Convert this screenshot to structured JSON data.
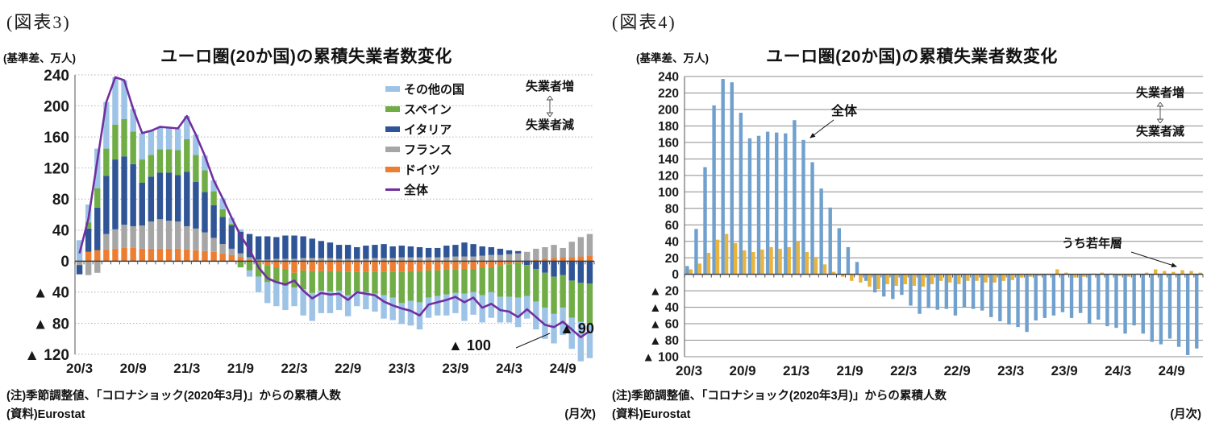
{
  "figures": [
    {
      "caption": "(図表3)",
      "unit_label": "(基準差、万人)",
      "title": "ユーロ圏(20か国)の累積失業者数変化",
      "note1": "(注)季節調整値、「コロナショック(2020年3月)」からの累積人数",
      "note2": "(資料)Eurostat",
      "freq_label": "(月次)",
      "annotations": {
        "increase": "失業者増",
        "decrease": "失業者減",
        "min_callout": "▲ 100",
        "end_value": "▲ 90"
      },
      "legend": {
        "others": "その他の国",
        "spain": "スペイン",
        "italy": "イタリア",
        "france": "フランス",
        "germany": "ドイツ",
        "total": "全体"
      },
      "chart_data": {
        "type": "bar",
        "subtype": "stacked-bars-with-total-line",
        "title": "ユーロ圏(20か国)の累積失業者数変化",
        "ylabel": "(基準差、万人)",
        "xlabel": "(月次)",
        "ylim": [
          -120,
          240
        ],
        "ytick_step": 40,
        "x_tick_every": 6,
        "grid": "dotted",
        "legend_position": "upper-right-inside",
        "categories": [
          "20/3",
          "20/4",
          "20/5",
          "20/6",
          "20/7",
          "20/8",
          "20/9",
          "20/10",
          "20/11",
          "20/12",
          "21/1",
          "21/2",
          "21/3",
          "21/4",
          "21/5",
          "21/6",
          "21/7",
          "21/8",
          "21/9",
          "21/10",
          "21/11",
          "21/12",
          "22/1",
          "22/2",
          "22/3",
          "22/4",
          "22/5",
          "22/6",
          "22/7",
          "22/8",
          "22/9",
          "22/10",
          "22/11",
          "22/12",
          "23/1",
          "23/2",
          "23/3",
          "23/4",
          "23/5",
          "23/6",
          "23/7",
          "23/8",
          "23/9",
          "23/10",
          "23/11",
          "23/12",
          "24/1",
          "24/2",
          "24/3",
          "24/4",
          "24/5",
          "24/6",
          "24/7",
          "24/8",
          "24/9",
          "24/10",
          "24/11",
          "24/12"
        ],
        "series": [
          {
            "key": "germany",
            "name": "ドイツ",
            "color": "#ED7D31",
            "values": [
              0,
              12,
              14,
              15,
              16,
              17,
              17,
              16,
              16,
              16,
              16,
              16,
              15,
              14,
              13,
              12,
              10,
              8,
              5,
              2,
              -2,
              -5,
              -8,
              -10,
              -15,
              -12,
              -13,
              -13,
              -13,
              -13,
              -14,
              -14,
              -14,
              -14,
              -14,
              -14,
              -14,
              -13,
              -13,
              -12,
              -12,
              -11,
              -11,
              -10,
              -10,
              -9,
              -8,
              -6,
              -4,
              -2,
              0,
              2,
              3,
              4,
              5,
              5,
              6,
              7
            ]
          },
          {
            "key": "france",
            "name": "フランス",
            "color": "#A6A6A6",
            "values": [
              -5,
              -18,
              -15,
              20,
              25,
              30,
              28,
              30,
              35,
              38,
              36,
              35,
              30,
              28,
              24,
              18,
              12,
              8,
              5,
              3,
              2,
              2,
              3,
              3,
              3,
              4,
              4,
              4,
              4,
              3,
              3,
              3,
              3,
              4,
              4,
              4,
              5,
              5,
              5,
              5,
              5,
              5,
              6,
              6,
              6,
              7,
              8,
              8,
              9,
              10,
              12,
              14,
              15,
              17,
              12,
              20,
              25,
              28
            ]
          },
          {
            "key": "italy",
            "name": "イタリア",
            "color": "#2F5597",
            "values": [
              -12,
              30,
              55,
              75,
              90,
              88,
              80,
              55,
              58,
              60,
              62,
              60,
              70,
              60,
              52,
              42,
              35,
              30,
              28,
              30,
              30,
              30,
              28,
              30,
              30,
              28,
              25,
              22,
              20,
              18,
              18,
              15,
              17,
              17,
              18,
              15,
              15,
              14,
              13,
              12,
              12,
              15,
              15,
              18,
              16,
              12,
              10,
              8,
              5,
              3,
              -5,
              -10,
              -15,
              -20,
              -18,
              -25,
              -28,
              -29
            ]
          },
          {
            "key": "spain",
            "name": "スペイン",
            "color": "#70AD47",
            "values": [
              0,
              8,
              25,
              35,
              45,
              48,
              42,
              30,
              28,
              30,
              30,
              32,
              42,
              35,
              28,
              18,
              10,
              2,
              -8,
              -12,
              -18,
              -22,
              -20,
              -22,
              -19,
              -24,
              -28,
              -25,
              -26,
              -25,
              -30,
              -25,
              -26,
              -28,
              -30,
              -33,
              -40,
              -38,
              -40,
              -35,
              -33,
              -32,
              -30,
              -32,
              -30,
              -35,
              -32,
              -40,
              -42,
              -45,
              -40,
              -42,
              -45,
              -48,
              -42,
              -48,
              -50,
              -53
            ]
          },
          {
            "key": "others",
            "name": "その他の国",
            "color": "#9DC3E6",
            "values": [
              27,
              23,
              51,
              60,
              61,
              50,
              29,
              34,
              31,
              29,
              28,
              28,
              30,
              26,
              19,
              14,
              14,
              8,
              3,
              -8,
              -20,
              -27,
              -30,
              -31,
              -24,
              -34,
              -36,
              -29,
              -28,
              -25,
              -27,
              -19,
              -22,
              -23,
              -30,
              -29,
              -27,
              -32,
              -35,
              -26,
              -25,
              -27,
              -26,
              -35,
              -29,
              -35,
              -33,
              -33,
              -33,
              -38,
              -29,
              -36,
              -40,
              -38,
              -35,
              -40,
              -51,
              -43
            ]
          }
        ],
        "line": {
          "key": "total",
          "name": "全体",
          "color": "#7030A0",
          "values": [
            10,
            55,
            130,
            205,
            237,
            233,
            196,
            165,
            168,
            173,
            172,
            171,
            187,
            163,
            136,
            104,
            81,
            56,
            33,
            15,
            -8,
            -22,
            -27,
            -30,
            -25,
            -38,
            -48,
            -41,
            -43,
            -42,
            -50,
            -40,
            -42,
            -44,
            -52,
            -57,
            -61,
            -64,
            -70,
            -56,
            -53,
            -50,
            -46,
            -53,
            -47,
            -60,
            -55,
            -63,
            -65,
            -72,
            -62,
            -72,
            -82,
            -85,
            -78,
            -88,
            -98,
            -90
          ]
        }
      }
    },
    {
      "caption": "(図表4)",
      "unit_label": "(基準差、万人)",
      "title": "ユーロ圏(20か国)の累積失業者数変化",
      "note1": "(注)季節調整値、「コロナショック(2020年3月)」からの累積人数",
      "note2": "(資料)Eurostat",
      "freq_label": "(月次)",
      "annotations": {
        "increase": "失業者増",
        "decrease": "失業者減",
        "total": "全体",
        "youth": "うち若年層"
      },
      "chart_data": {
        "type": "bar",
        "subtype": "grouped-bars",
        "title": "ユーロ圏(20か国)の累積失業者数変化",
        "ylabel": "(基準差、万人)",
        "xlabel": "(月次)",
        "ylim": [
          -100,
          240
        ],
        "ytick_step": 20,
        "x_tick_every": 6,
        "grid": "solid",
        "categories": [
          "20/3",
          "20/4",
          "20/5",
          "20/6",
          "20/7",
          "20/8",
          "20/9",
          "20/10",
          "20/11",
          "20/12",
          "21/1",
          "21/2",
          "21/3",
          "21/4",
          "21/5",
          "21/6",
          "21/7",
          "21/8",
          "21/9",
          "21/10",
          "21/11",
          "21/12",
          "22/1",
          "22/2",
          "22/3",
          "22/4",
          "22/5",
          "22/6",
          "22/7",
          "22/8",
          "22/9",
          "22/10",
          "22/11",
          "22/12",
          "23/1",
          "23/2",
          "23/3",
          "23/4",
          "23/5",
          "23/6",
          "23/7",
          "23/8",
          "23/9",
          "23/10",
          "23/11",
          "23/12",
          "24/1",
          "24/2",
          "24/3",
          "24/4",
          "24/5",
          "24/6",
          "24/7",
          "24/8",
          "24/9",
          "24/10",
          "24/11",
          "24/12"
        ],
        "series": [
          {
            "key": "total",
            "name": "全体",
            "color": "#6FA0CE",
            "values": [
              10,
              55,
              130,
              205,
              237,
              233,
              196,
              165,
              168,
              173,
              172,
              171,
              187,
              163,
              136,
              104,
              81,
              56,
              33,
              15,
              -8,
              -22,
              -27,
              -30,
              -25,
              -38,
              -48,
              -41,
              -43,
              -42,
              -50,
              -40,
              -42,
              -44,
              -52,
              -57,
              -61,
              -64,
              -70,
              -56,
              -53,
              -50,
              -46,
              -53,
              -47,
              -60,
              -55,
              -63,
              -65,
              -72,
              -62,
              -72,
              -82,
              -85,
              -78,
              -88,
              -98,
              -90
            ]
          },
          {
            "key": "youth",
            "name": "うち若年層",
            "color": "#E9B33C",
            "values": [
              6,
              13,
              26,
              42,
              49,
              38,
              29,
              27,
              30,
              33,
              31,
              33,
              40,
              27,
              21,
              12,
              3,
              -3,
              -8,
              -10,
              -15,
              -18,
              -12,
              -14,
              -12,
              -14,
              -15,
              -12,
              -8,
              -10,
              -12,
              -8,
              -8,
              -10,
              -10,
              -8,
              -7,
              -4,
              -3,
              -2,
              -1,
              6,
              2,
              -4,
              -3,
              1,
              2,
              1,
              -2,
              -3,
              1,
              2,
              6,
              4,
              3,
              5,
              4,
              2
            ]
          }
        ]
      }
    }
  ]
}
